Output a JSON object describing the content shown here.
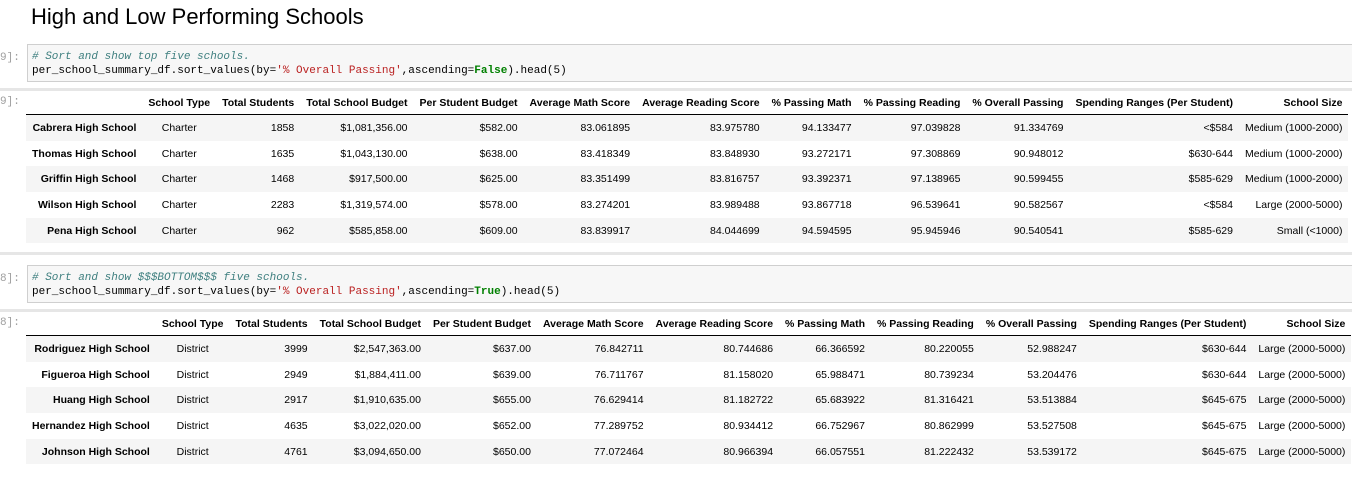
{
  "heading": "High and Low Performing Schools",
  "columns": [
    "School Type",
    "Total Students",
    "Total School Budget",
    "Per Student Budget",
    "Average Math Score",
    "Average Reading Score",
    "% Passing Math",
    "% Passing Reading",
    "% Overall Passing",
    "Spending Ranges (Per Student)",
    "School Size"
  ],
  "cell1": {
    "in_prompt": "9]:",
    "out_prompt": "9]:",
    "comment": "# Sort and show top five schools.",
    "code_prefix": "per_school_summary_df.sort_values(by=",
    "code_string": "'% Overall Passing'",
    "code_mid": ",ascending=",
    "code_bool": "False",
    "code_suffix": ").head(5)",
    "rows": [
      [
        "Cabrera High School",
        "Charter",
        "1858",
        "$1,081,356.00",
        "$582.00",
        "83.061895",
        "83.975780",
        "94.133477",
        "97.039828",
        "91.334769",
        "<$584",
        "Medium (1000-2000)"
      ],
      [
        "Thomas High School",
        "Charter",
        "1635",
        "$1,043,130.00",
        "$638.00",
        "83.418349",
        "83.848930",
        "93.272171",
        "97.308869",
        "90.948012",
        "$630-644",
        "Medium (1000-2000)"
      ],
      [
        "Griffin High School",
        "Charter",
        "1468",
        "$917,500.00",
        "$625.00",
        "83.351499",
        "83.816757",
        "93.392371",
        "97.138965",
        "90.599455",
        "$585-629",
        "Medium (1000-2000)"
      ],
      [
        "Wilson High School",
        "Charter",
        "2283",
        "$1,319,574.00",
        "$578.00",
        "83.274201",
        "83.989488",
        "93.867718",
        "96.539641",
        "90.582567",
        "<$584",
        "Large (2000-5000)"
      ],
      [
        "Pena High School",
        "Charter",
        "962",
        "$585,858.00",
        "$609.00",
        "83.839917",
        "84.044699",
        "94.594595",
        "95.945946",
        "90.540541",
        "$585-629",
        "Small (<1000)"
      ]
    ]
  },
  "cell2": {
    "in_prompt": "8]:",
    "out_prompt": "8]:",
    "comment": "# Sort and show $$$BOTTOM$$$ five schools.",
    "code_prefix": "per_school_summary_df.sort_values(by=",
    "code_string": "'% Overall Passing'",
    "code_mid": ",ascending=",
    "code_bool": "True",
    "code_suffix": ").head(5)",
    "rows": [
      [
        "Rodriguez High School",
        "District",
        "3999",
        "$2,547,363.00",
        "$637.00",
        "76.842711",
        "80.744686",
        "66.366592",
        "80.220055",
        "52.988247",
        "$630-644",
        "Large (2000-5000)"
      ],
      [
        "Figueroa High School",
        "District",
        "2949",
        "$1,884,411.00",
        "$639.00",
        "76.711767",
        "81.158020",
        "65.988471",
        "80.739234",
        "53.204476",
        "$630-644",
        "Large (2000-5000)"
      ],
      [
        "Huang High School",
        "District",
        "2917",
        "$1,910,635.00",
        "$655.00",
        "76.629414",
        "81.182722",
        "65.683922",
        "81.316421",
        "53.513884",
        "$645-675",
        "Large (2000-5000)"
      ],
      [
        "Hernandez High School",
        "District",
        "4635",
        "$3,022,020.00",
        "$652.00",
        "77.289752",
        "80.934412",
        "66.752967",
        "80.862999",
        "53.527508",
        "$645-675",
        "Large (2000-5000)"
      ],
      [
        "Johnson High School",
        "District",
        "4761",
        "$3,094,650.00",
        "$650.00",
        "77.072464",
        "80.966394",
        "66.057551",
        "81.222432",
        "53.539172",
        "$645-675",
        "Large (2000-5000)"
      ]
    ]
  }
}
